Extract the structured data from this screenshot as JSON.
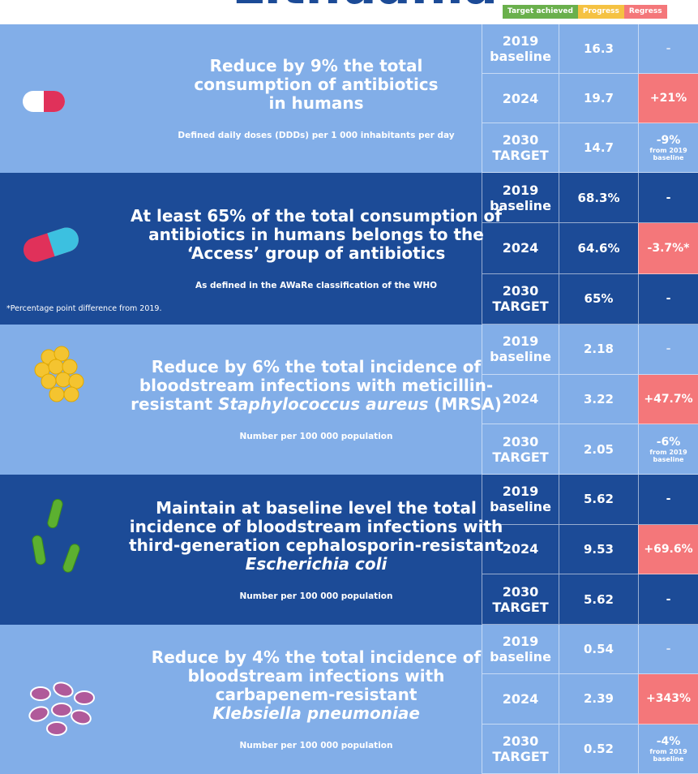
{
  "title": "Lithuania",
  "legend": [
    {
      "text": "Target achieved",
      "color": "#6ab04c"
    },
    {
      "text": "Progress",
      "color": "#f5c242"
    },
    {
      "text": "Regress",
      "color": "#f4777a"
    }
  ],
  "sections": [
    {
      "theme": "light",
      "heading": [
        [
          "Reduce by 9% the total"
        ],
        [
          "consumption of antibiotics"
        ],
        [
          "in humans"
        ]
      ],
      "subtitle": "Defined daily doses (DDDs) per 1 000 inhabitants per day",
      "rows": [
        {
          "year": "2019",
          "label": "baseline",
          "value": "16.3",
          "change": "-"
        },
        {
          "year": "2024",
          "value": "19.7",
          "change": "+21%",
          "color": "#f4777a"
        },
        {
          "year": "2030",
          "label": "TARGET",
          "value": "14.7",
          "change": "-9%",
          "change_note": "from 2019 baseline"
        }
      ]
    },
    {
      "theme": "dark",
      "heading": [
        [
          "At least 65% of the total consumption of"
        ],
        [
          "antibiotics in humans belongs to the"
        ],
        [
          "‘Access’ group of antibiotics"
        ]
      ],
      "subtitle": "As defined in the AWaRe classification of the WHO",
      "note": "*Percentage point difference from 2019.",
      "rows": [
        {
          "year": "2019",
          "label": "baseline",
          "value": "68.3%",
          "change": "-"
        },
        {
          "year": "2024",
          "value": "64.6%",
          "change": "-3.7%*",
          "color": "#f4777a"
        },
        {
          "year": "2030",
          "label": "TARGET",
          "value": "65%",
          "change": "-"
        }
      ]
    },
    {
      "theme": "light",
      "heading": [
        [
          "Reduce by 6% the total incidence of"
        ],
        [
          "bloodstream infections with meticillin-"
        ],
        [
          "resistant ",
          {
            "text": "Staphylococcus aureus",
            "italic": true
          },
          " (MRSA)"
        ]
      ],
      "subtitle": "Number per 100 000 population",
      "rows": [
        {
          "year": "2019",
          "label": "baseline",
          "value": "2.18",
          "change": "-"
        },
        {
          "year": "2024",
          "value": "3.22",
          "change": "+47.7%",
          "color": "#f4777a"
        },
        {
          "year": "2030",
          "label": "TARGET",
          "value": "2.05",
          "change": "-6%",
          "change_note": "from 2019 baseline"
        }
      ]
    },
    {
      "theme": "dark",
      "heading": [
        [
          "Maintain at baseline level the total"
        ],
        [
          "incidence of bloodstream infections with"
        ],
        [
          "third-generation cephalosporin-resistant"
        ],
        [
          {
            "text": "Escherichia coli",
            "italic": true
          }
        ]
      ],
      "subtitle": "Number per 100 000 population",
      "rows": [
        {
          "year": "2019",
          "label": "baseline",
          "value": "5.62",
          "change": "-"
        },
        {
          "year": "2024",
          "value": "9.53",
          "change": "+69.6%",
          "color": "#f4777a"
        },
        {
          "year": "2030",
          "label": "TARGET",
          "value": "5.62",
          "change": "-"
        }
      ]
    },
    {
      "theme": "light",
      "heading": [
        [
          "Reduce by 4% the total incidence of"
        ],
        [
          "bloodstream infections with"
        ],
        [
          "carbapenem-resistant"
        ],
        [
          {
            "text": "Klebsiella pneumoniae",
            "italic": true
          }
        ]
      ],
      "subtitle": "Number per 100 000 population",
      "rows": [
        {
          "year": "2019",
          "label": "baseline",
          "value": "0.54",
          "change": "-"
        },
        {
          "year": "2024",
          "value": "2.39",
          "change": "+343%",
          "color": "#f4777a"
        },
        {
          "year": "2030",
          "label": "TARGET",
          "value": "0.52",
          "change": "-4%",
          "change_note": "from 2019 baseline"
        }
      ]
    }
  ]
}
